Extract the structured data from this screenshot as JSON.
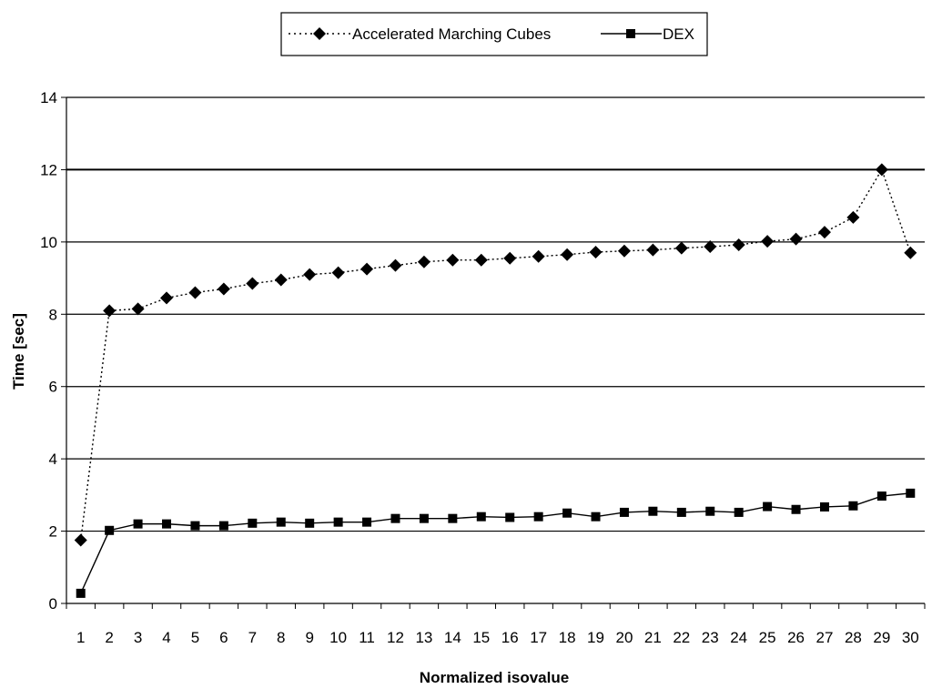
{
  "chart_data": {
    "type": "line",
    "title": "",
    "xlabel": "Normalized isovalue",
    "ylabel": "Time [sec]",
    "ylim": [
      0,
      14
    ],
    "yticks": [
      0,
      2,
      4,
      6,
      8,
      10,
      12,
      14
    ],
    "categories": [
      "1",
      "2",
      "3",
      "4",
      "5",
      "6",
      "7",
      "8",
      "9",
      "10",
      "11",
      "12",
      "13",
      "14",
      "15",
      "16",
      "17",
      "18",
      "19",
      "20",
      "21",
      "22",
      "23",
      "24",
      "25",
      "26",
      "27",
      "28",
      "29",
      "30"
    ],
    "grid": "horizontal",
    "legend_position": "top-center",
    "series": [
      {
        "name": "Accelerated Marching Cubes",
        "marker": "diamond",
        "line_style": "dotted",
        "values": [
          1.75,
          8.1,
          8.15,
          8.45,
          8.6,
          8.7,
          8.85,
          8.95,
          9.1,
          9.15,
          9.25,
          9.35,
          9.45,
          9.5,
          9.5,
          9.55,
          9.6,
          9.65,
          9.72,
          9.75,
          9.78,
          9.83,
          9.87,
          9.92,
          10.02,
          10.08,
          10.27,
          10.68,
          12.0,
          9.7
        ]
      },
      {
        "name": "DEX",
        "marker": "square",
        "line_style": "solid",
        "values": [
          0.28,
          2.02,
          2.2,
          2.2,
          2.15,
          2.15,
          2.22,
          2.25,
          2.22,
          2.25,
          2.25,
          2.35,
          2.35,
          2.35,
          2.4,
          2.38,
          2.4,
          2.5,
          2.4,
          2.52,
          2.55,
          2.52,
          2.55,
          2.52,
          2.68,
          2.6,
          2.67,
          2.7,
          2.97,
          3.05
        ]
      }
    ]
  }
}
